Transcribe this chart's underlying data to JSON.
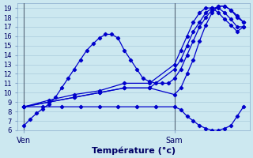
{
  "xlabel": "Température (°c)",
  "background_color": "#cce8f0",
  "grid_color": "#aaccdd",
  "line_color": "#0000cc",
  "ylim": [
    6,
    19.5
  ],
  "yticks": [
    6,
    7,
    8,
    9,
    10,
    11,
    12,
    13,
    14,
    15,
    16,
    17,
    18,
    19
  ],
  "xtick_positions": [
    0,
    24
  ],
  "xtick_labels": [
    "Ven",
    "Sam"
  ],
  "xlim": [
    -1,
    36
  ],
  "vline_ven": 0,
  "vline_sam": 24,
  "lines": [
    {
      "x": [
        0,
        1,
        2,
        3,
        4,
        5,
        6,
        7,
        8,
        9,
        10,
        11,
        12,
        13,
        14,
        15,
        16,
        17,
        18,
        19,
        20,
        21,
        22,
        23,
        24,
        25,
        26,
        27,
        28,
        29,
        30,
        31,
        32,
        33,
        34,
        35
      ],
      "y": [
        6.5,
        7.2,
        7.8,
        8.3,
        8.8,
        9.5,
        10.5,
        11.5,
        12.5,
        13.5,
        14.5,
        15.2,
        15.8,
        16.2,
        16.2,
        15.8,
        14.5,
        13.5,
        12.5,
        11.5,
        11.2,
        11.0,
        11.0,
        11.0,
        11.5,
        12.5,
        14.0,
        15.5,
        17.0,
        18.0,
        18.8,
        19.2,
        19.2,
        18.8,
        18.2,
        17.5
      ]
    },
    {
      "x": [
        0,
        3,
        6,
        9,
        12,
        15,
        18,
        21,
        24,
        25,
        26,
        27,
        28,
        29,
        30,
        31,
        32,
        33,
        34,
        35
      ],
      "y": [
        8.5,
        8.5,
        8.5,
        8.5,
        8.5,
        8.5,
        8.5,
        8.5,
        8.5,
        8.2,
        7.5,
        7.0,
        6.5,
        6.2,
        6.0,
        6.0,
        6.2,
        6.5,
        7.5,
        8.5
      ]
    },
    {
      "x": [
        0,
        4,
        8,
        12,
        16,
        20,
        24,
        25,
        26,
        27,
        28,
        29,
        30,
        31,
        32,
        33,
        34,
        35
      ],
      "y": [
        8.5,
        9.0,
        9.5,
        10.0,
        10.5,
        10.5,
        9.8,
        10.5,
        12.0,
        13.5,
        15.5,
        17.2,
        18.5,
        19.2,
        19.2,
        18.8,
        18.0,
        17.5
      ]
    },
    {
      "x": [
        0,
        4,
        8,
        12,
        16,
        20,
        24,
        25,
        26,
        27,
        28,
        29,
        30,
        31,
        32,
        33,
        34,
        35
      ],
      "y": [
        8.5,
        9.0,
        9.5,
        10.0,
        10.5,
        10.5,
        12.5,
        13.5,
        15.0,
        16.5,
        17.5,
        18.5,
        19.0,
        19.0,
        18.5,
        17.8,
        17.0,
        17.0
      ]
    },
    {
      "x": [
        0,
        4,
        8,
        12,
        16,
        20,
        24,
        25,
        26,
        27,
        28,
        29,
        30,
        31,
        32,
        33,
        34,
        35
      ],
      "y": [
        8.5,
        9.2,
        9.8,
        10.2,
        11.0,
        11.0,
        13.0,
        14.5,
        16.0,
        17.5,
        18.5,
        19.0,
        19.0,
        18.5,
        17.8,
        17.2,
        16.5,
        17.0
      ]
    }
  ]
}
